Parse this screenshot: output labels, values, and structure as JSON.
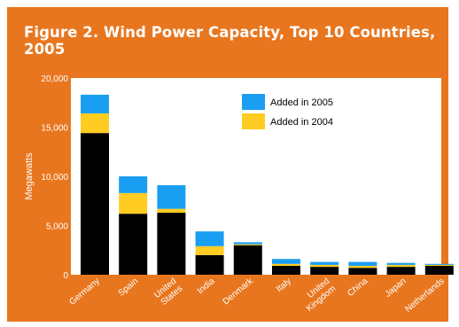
{
  "colors": {
    "frame": "#e8761e",
    "plot_bg": "#ffffff",
    "base": "#000000",
    "added_2004": "#ffcc22",
    "added_2005": "#1a9ef2",
    "text": "#ffffff"
  },
  "chart_data": {
    "type": "bar",
    "stacked": true,
    "title": "Figure 2. Wind Power Capacity, Top 10 Countries, 2005",
    "xlabel": "",
    "ylabel": "Megawatts",
    "ylim": [
      0,
      20000
    ],
    "yticks": [
      0,
      5000,
      10000,
      15000,
      20000
    ],
    "ytick_labels": [
      "0",
      "5,000",
      "10,000",
      "15,000",
      "20,000"
    ],
    "legend_position": "top-right",
    "categories": [
      "Germany",
      "Spain",
      "United States",
      "India",
      "Denmark",
      "Italy",
      "United Kingdom",
      "China",
      "Japan",
      "Netherlands"
    ],
    "category_lines": [
      [
        "Germany"
      ],
      [
        "Spain"
      ],
      [
        "United",
        "States"
      ],
      [
        "India"
      ],
      [
        "Denmark"
      ],
      [
        "Italy"
      ],
      [
        "United",
        "Kingdom"
      ],
      [
        "China"
      ],
      [
        "Japan"
      ],
      [
        "Netherlands"
      ]
    ],
    "series": [
      {
        "key": "base",
        "values": [
          14400,
          6200,
          6300,
          2000,
          3000,
          900,
          800,
          700,
          800,
          900
        ]
      },
      {
        "name": "Added in 2004",
        "key": "added_2004",
        "values": [
          2000,
          2100,
          400,
          900,
          100,
          200,
          200,
          200,
          200,
          100
        ]
      },
      {
        "name": "Added in 2005",
        "key": "added_2005",
        "values": [
          1900,
          1700,
          2400,
          1500,
          200,
          500,
          300,
          400,
          200,
          100
        ]
      }
    ]
  }
}
